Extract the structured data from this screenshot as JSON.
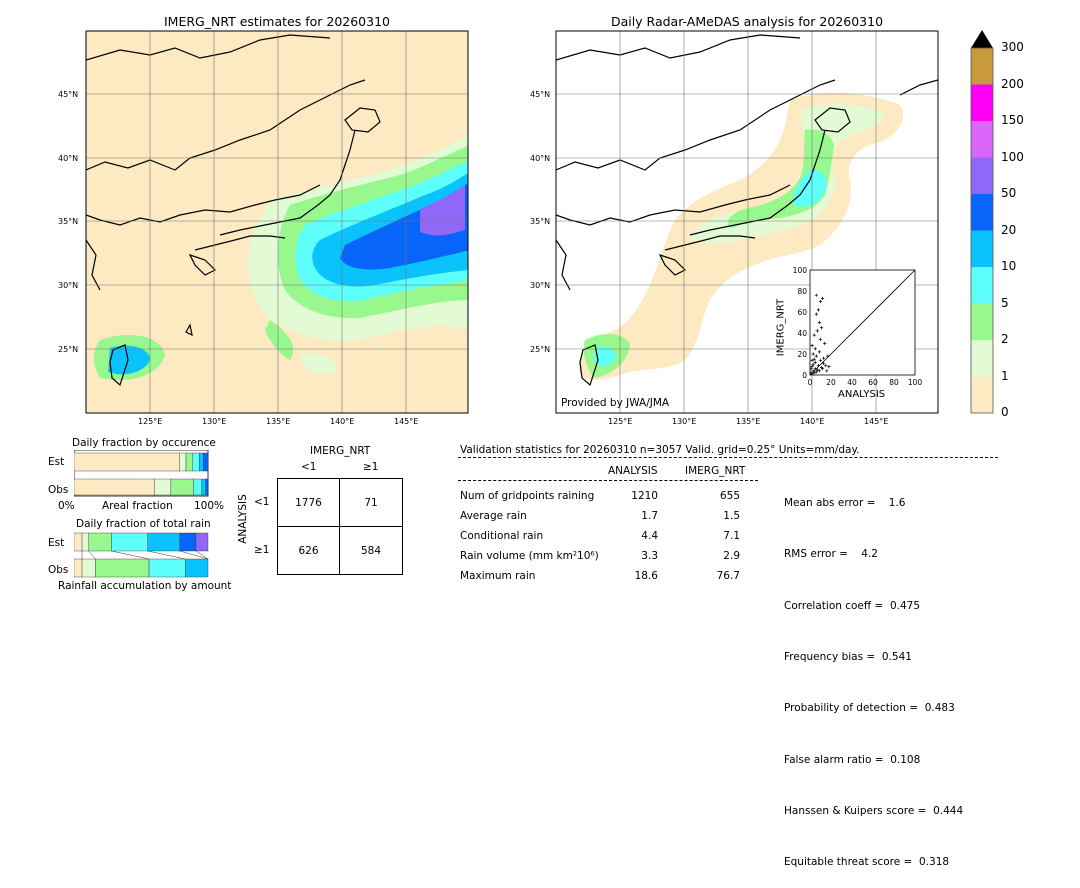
{
  "left_map": {
    "title": "IMERG_NRT estimates for 20260310",
    "lat_labels": [
      "45°N",
      "40°N",
      "35°N",
      "30°N",
      "25°N"
    ],
    "lon_labels": [
      "125°E",
      "130°E",
      "135°E",
      "140°E",
      "145°E"
    ]
  },
  "right_map": {
    "title": "Daily Radar-AMeDAS analysis for 20260310",
    "lat_labels": [
      "45°N",
      "40°N",
      "35°N",
      "30°N",
      "25°N"
    ],
    "lon_labels": [
      "125°E",
      "130°E",
      "135°E",
      "140°E",
      "145°E"
    ],
    "credit": "Provided by JWA/JMA"
  },
  "colorbar": {
    "ticks": [
      "0",
      "1",
      "2",
      "5",
      "10",
      "20",
      "50",
      "100",
      "150",
      "200",
      "300"
    ],
    "colors": [
      "#fde9c2",
      "#e3fbd4",
      "#98f88d",
      "#5cfffa",
      "#0bc3fc",
      "#0865f9",
      "#9067f7",
      "#d966f9",
      "#fe00f8",
      "#c99a3b"
    ],
    "extend_color": "#000000"
  },
  "scatter": {
    "xlabel": "ANALYSIS",
    "ylabel": "IMERG_NRT",
    "ticks": [
      "0",
      "20",
      "40",
      "60",
      "80",
      "100"
    ]
  },
  "fraction_occurrence": {
    "title": "Daily fraction by occurence",
    "row_labels": [
      "Est",
      "Obs"
    ],
    "axis_left": "0%",
    "axis_mid": "Areal fraction",
    "axis_right": "100%"
  },
  "fraction_rain": {
    "title": "Daily fraction of total rain",
    "row_labels": [
      "Est",
      "Obs"
    ],
    "axis_label": "Rainfall accumulation by amount"
  },
  "contingency": {
    "col_title": "IMERG_NRT",
    "col_labels": [
      "<1",
      "≥1"
    ],
    "row_title": "ANALYSIS",
    "row_labels": [
      "<1",
      "≥1"
    ],
    "cells": [
      "1776",
      "71",
      "626",
      "584"
    ]
  },
  "validation": {
    "header": "Validation statistics for 20260310  n=3057 Valid. grid=0.25° Units=mm/day.",
    "col_analysis": "ANALYSIS",
    "col_imerg": "IMERG_NRT",
    "rows": [
      {
        "label": "Num of gridpoints raining",
        "analysis": "1210",
        "imerg": "655"
      },
      {
        "label": "Average rain",
        "analysis": "1.7",
        "imerg": "1.5"
      },
      {
        "label": "Conditional rain",
        "analysis": "4.4",
        "imerg": "7.1"
      },
      {
        "label": "Rain volume (mm km²10⁶)",
        "analysis": "3.3",
        "imerg": "2.9"
      },
      {
        "label": "Maximum rain",
        "analysis": "18.6",
        "imerg": "76.7"
      }
    ],
    "scores": [
      "Mean abs error =    1.6",
      "RMS error =    4.2",
      "Correlation coeff =  0.475",
      "Frequency bias =  0.541",
      "Probability of detection =  0.483",
      "False alarm ratio =  0.108",
      "Hanssen & Kuipers score =  0.444",
      "Equitable threat score =  0.318"
    ]
  },
  "chart_data": [
    {
      "type": "scatter",
      "xlabel": "ANALYSIS",
      "ylabel": "IMERG_NRT",
      "xlim": [
        0,
        100
      ],
      "ylim": [
        0,
        100
      ],
      "points": [
        [
          1,
          2
        ],
        [
          2,
          1
        ],
        [
          3,
          4
        ],
        [
          4,
          2
        ],
        [
          5,
          6
        ],
        [
          6,
          3
        ],
        [
          2,
          8
        ],
        [
          3,
          10
        ],
        [
          5,
          12
        ],
        [
          7,
          5
        ],
        [
          8,
          9
        ],
        [
          9,
          4
        ],
        [
          10,
          14
        ],
        [
          11,
          7
        ],
        [
          4,
          15
        ],
        [
          6,
          18
        ],
        [
          12,
          6
        ],
        [
          13,
          11
        ],
        [
          15,
          9
        ],
        [
          16,
          4
        ],
        [
          3,
          20
        ],
        [
          5,
          25
        ],
        [
          2,
          28
        ],
        [
          4,
          38
        ],
        [
          7,
          42
        ],
        [
          9,
          50
        ],
        [
          6,
          58
        ],
        [
          8,
          62
        ],
        [
          10,
          70
        ],
        [
          12,
          73
        ],
        [
          6,
          76
        ],
        [
          11,
          45
        ],
        [
          14,
          30
        ],
        [
          17,
          18
        ],
        [
          18,
          8
        ],
        [
          1,
          6
        ],
        [
          2,
          14
        ],
        [
          9,
          22
        ],
        [
          13,
          16
        ],
        [
          10,
          34
        ]
      ],
      "diagonal": true
    },
    {
      "type": "bar",
      "title": "Daily fraction by occurence",
      "categories": [
        "Est",
        "Obs"
      ],
      "series": [
        {
          "values": [
            0.786,
            0.603
          ]
        },
        {
          "values": [
            0.05,
            0.12
          ]
        },
        {
          "values": [
            0.05,
            0.17
          ]
        },
        {
          "values": [
            0.05,
            0.06
          ]
        },
        {
          "values": [
            0.03,
            0.03
          ]
        },
        {
          "values": [
            0.034,
            0.017
          ]
        }
      ]
    },
    {
      "type": "bar",
      "title": "Daily fraction of total rain",
      "categories": [
        "Est",
        "Obs"
      ],
      "series": [
        {
          "values": [
            0.06,
            0.06
          ]
        },
        {
          "values": [
            0.05,
            0.1
          ]
        },
        {
          "values": [
            0.17,
            0.4
          ]
        },
        {
          "values": [
            0.27,
            0.27
          ]
        },
        {
          "values": [
            0.24,
            0.17
          ]
        },
        {
          "values": [
            0.12,
            0.0
          ]
        },
        {
          "values": [
            0.09,
            0.0
          ]
        }
      ]
    }
  ]
}
